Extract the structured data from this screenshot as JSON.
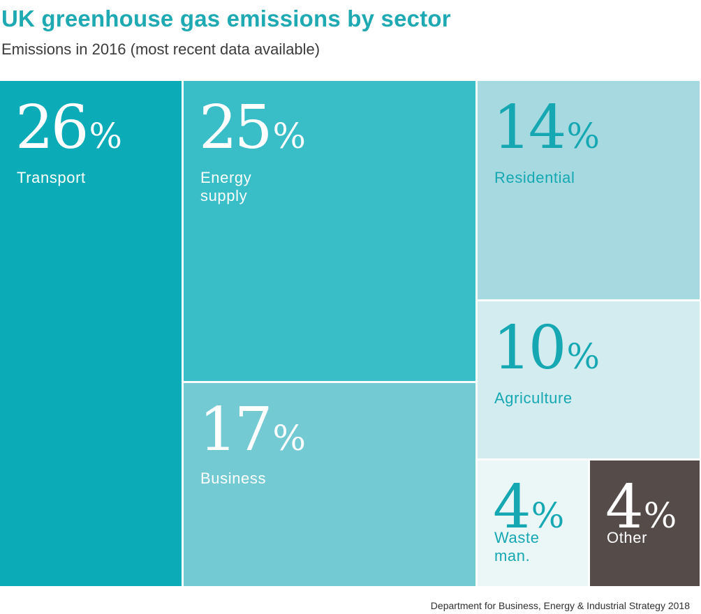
{
  "title": "UK greenhouse gas emissions by sector",
  "subtitle": "Emissions in 2016 (most recent data available)",
  "source": "Department for Business, Energy & Industrial Strategy 2018",
  "chart_data": {
    "type": "treemap",
    "title": "UK greenhouse gas emissions by sector",
    "subtitle": "Emissions in 2016 (most recent data available)",
    "unit": "%",
    "categories": [
      "Transport",
      "Energy supply",
      "Business",
      "Residential",
      "Agriculture",
      "Waste man.",
      "Other"
    ],
    "values": [
      26,
      25,
      17,
      14,
      10,
      4,
      4
    ],
    "colors": [
      "#0bacb7",
      "#39bdc6",
      "#74cad3",
      "#a7dae0",
      "#d2ecef",
      "#ebf6f7",
      "#554c4a"
    ]
  },
  "tiles": [
    {
      "value": "26",
      "symbol": "%",
      "label": "Transport",
      "bg": "#0bacb7",
      "fg": "#ffffff"
    },
    {
      "value": "25",
      "symbol": "%",
      "label": "Energy supply",
      "bg": "#39bdc6",
      "fg": "#ffffff"
    },
    {
      "value": "17",
      "symbol": "%",
      "label": "Business",
      "bg": "#74cad3",
      "fg": "#ffffff"
    },
    {
      "value": "14",
      "symbol": "%",
      "label": "Residential",
      "bg": "#a7dae0",
      "fg": "#16a8b2"
    },
    {
      "value": "10",
      "symbol": "%",
      "label": "Agriculture",
      "bg": "#d2ecef",
      "fg": "#16a8b2"
    },
    {
      "value": "4",
      "symbol": "%",
      "label": "Waste man.",
      "bg": "#ebf6f7",
      "fg": "#16a8b2"
    },
    {
      "value": "4",
      "symbol": "%",
      "label": "Other",
      "bg": "#554c4a",
      "fg": "#ffffff"
    }
  ]
}
